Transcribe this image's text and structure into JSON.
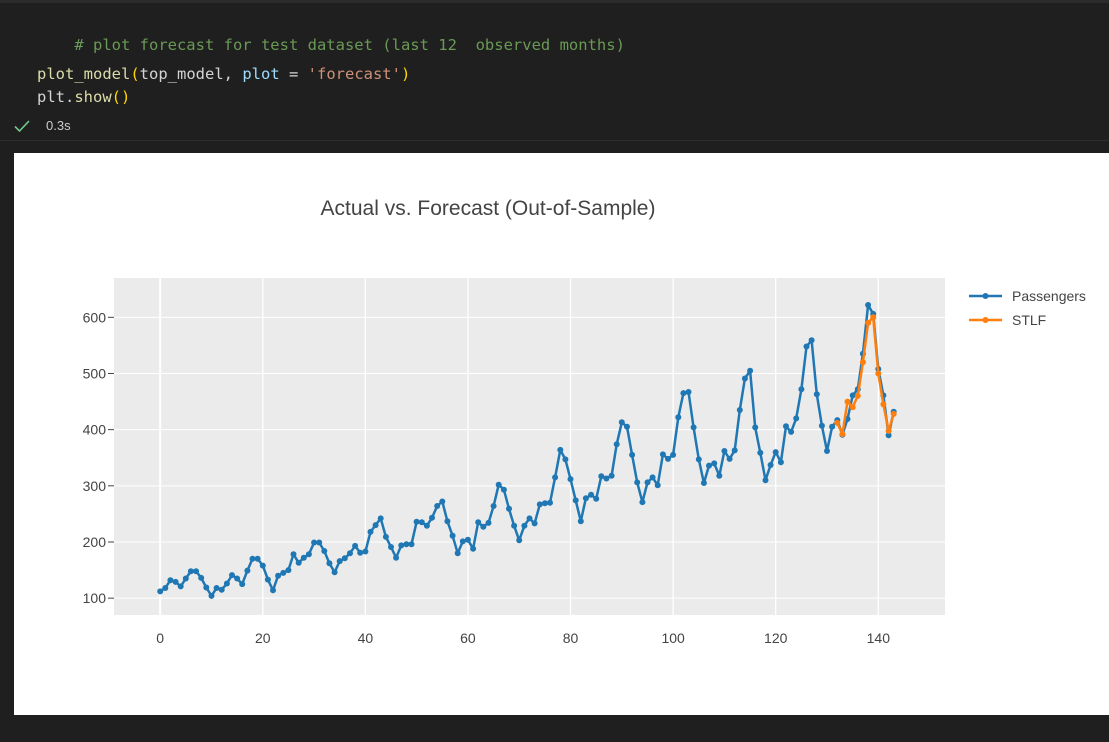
{
  "code": {
    "comment": "# plot forecast for test dataset (last 12  observed months)",
    "line2_func": "plot_model",
    "line2_open": "(",
    "line2_arg1": "top_model, ",
    "line2_kw": "plot",
    "line2_eq": " = ",
    "line2_str": "'forecast'",
    "line2_close": ")",
    "line3_obj": "plt.",
    "line3_func": "show",
    "line3_parens": "()"
  },
  "status": {
    "icon": "check-icon",
    "exec_time": "0.3s",
    "color": "#73c991"
  },
  "chart_data": {
    "type": "line",
    "title": "Actual vs. Forecast (Out-of-Sample)",
    "xlim": [
      -9,
      153
    ],
    "ylim": [
      70,
      670
    ],
    "xticks": [
      0,
      20,
      40,
      60,
      80,
      100,
      120,
      140
    ],
    "yticks": [
      100,
      200,
      300,
      400,
      500,
      600
    ],
    "grid": true,
    "legend_position": "top-right",
    "background": "#ebebeb",
    "series": [
      {
        "name": "Passengers",
        "color": "#1f77b4",
        "x_start": 0,
        "values": [
          112,
          118,
          132,
          129,
          121,
          135,
          148,
          148,
          136,
          119,
          104,
          118,
          115,
          126,
          141,
          135,
          125,
          149,
          170,
          170,
          158,
          133,
          114,
          140,
          145,
          150,
          178,
          163,
          172,
          178,
          199,
          199,
          184,
          162,
          146,
          166,
          171,
          180,
          193,
          181,
          183,
          218,
          230,
          242,
          209,
          191,
          172,
          194,
          196,
          196,
          236,
          235,
          229,
          243,
          264,
          272,
          237,
          211,
          180,
          201,
          204,
          188,
          235,
          227,
          234,
          264,
          302,
          293,
          259,
          229,
          203,
          229,
          242,
          233,
          267,
          269,
          270,
          315,
          364,
          347,
          312,
          274,
          237,
          278,
          284,
          277,
          317,
          313,
          318,
          374,
          413,
          405,
          355,
          306,
          271,
          306,
          315,
          301,
          356,
          348,
          355,
          422,
          465,
          467,
          404,
          347,
          305,
          336,
          340,
          318,
          362,
          348,
          363,
          435,
          491,
          505,
          404,
          359,
          310,
          337,
          360,
          342,
          406,
          396,
          420,
          472,
          548,
          559,
          463,
          407,
          362,
          405,
          417,
          391,
          419,
          461,
          472,
          535,
          622,
          606,
          508,
          461,
          390,
          432
        ]
      },
      {
        "name": "STLF",
        "color": "#ff7f0e",
        "x_start": 132,
        "values": [
          412,
          392,
          450,
          440,
          460,
          520,
          590,
          600,
          500,
          445,
          398,
          428
        ]
      }
    ]
  }
}
